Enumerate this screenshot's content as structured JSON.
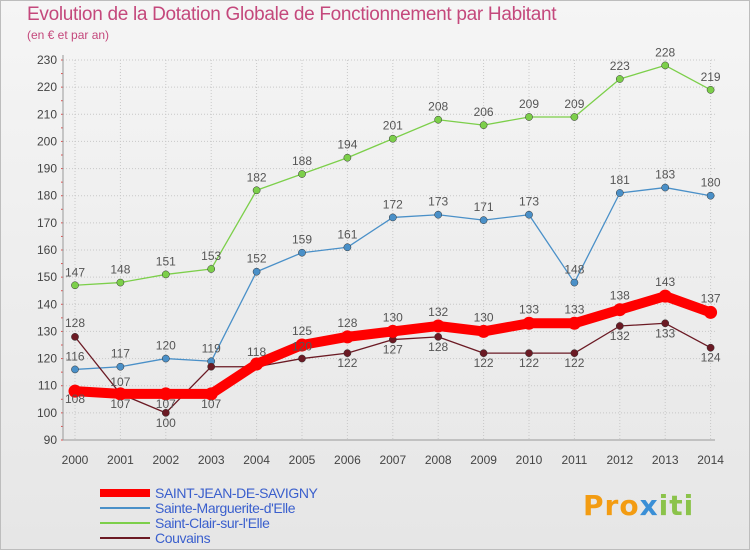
{
  "header": {
    "title": "Evolution de la Dotation Globale de Fonctionnement par Habitant",
    "subtitle": "(en € et par an)"
  },
  "logo": {
    "part1": "Pro",
    "part2": "x",
    "part3": "iti"
  },
  "chart_data": {
    "type": "line",
    "title": "Evolution de la Dotation Globale de Fonctionnement par Habitant",
    "subtitle": "(en € et par an)",
    "xlabel": "",
    "ylabel": "",
    "ylim": [
      90,
      230
    ],
    "yticks": [
      90,
      100,
      110,
      120,
      130,
      140,
      150,
      160,
      170,
      180,
      190,
      200,
      210,
      220,
      230
    ],
    "x": [
      "2000",
      "2001",
      "2002",
      "2003",
      "2004",
      "2005",
      "2006",
      "2007",
      "2008",
      "2009",
      "2010",
      "2011",
      "2012",
      "2013",
      "2014"
    ],
    "legend_position": "bottom-left",
    "series": [
      {
        "name": "Saint-Clair-sur-l'Elle",
        "color": "#7ccf4a",
        "values": [
          147,
          148,
          151,
          153,
          182,
          188,
          194,
          201,
          208,
          206,
          209,
          209,
          223,
          228,
          219
        ],
        "labels": [
          "147",
          "148",
          "151",
          "153",
          "182",
          "188",
          "194",
          "201",
          "208",
          "206",
          "209",
          "209",
          "223",
          "228",
          "219"
        ]
      },
      {
        "name": "Sainte-Marguerite-d'Elle",
        "color": "#4a90c8",
        "values": [
          116,
          117,
          120,
          119,
          152,
          159,
          161,
          172,
          173,
          171,
          173,
          148,
          181,
          183,
          180
        ],
        "labels": [
          "116",
          "117",
          "120",
          "119",
          "152",
          "159",
          "161",
          "172",
          "173",
          "171",
          "173",
          "148",
          "181",
          "183",
          "180"
        ]
      },
      {
        "name": "Couvains",
        "color": "#6b1a24",
        "values": [
          128,
          107,
          100,
          117,
          117,
          120,
          122,
          127,
          128,
          122,
          122,
          122,
          132,
          133,
          124
        ],
        "labels": [
          "128",
          "107",
          "100",
          "",
          "",
          "120",
          "122",
          "127",
          "128",
          "122",
          "122",
          "122",
          "132",
          "133",
          "124"
        ]
      },
      {
        "name": "SAINT-JEAN-DE-SAVIGNY",
        "color": "#ff0000",
        "values": [
          108,
          107,
          107,
          107,
          118,
          125,
          128,
          130,
          132,
          130,
          133,
          133,
          138,
          143,
          137
        ],
        "labels": [
          "108",
          "107",
          "107",
          "107",
          "118",
          "125",
          "128",
          "130",
          "132",
          "130",
          "133",
          "133",
          "138",
          "143",
          "137"
        ]
      }
    ]
  },
  "legend": {
    "items": [
      {
        "label": "SAINT-JEAN-DE-SAVIGNY",
        "color": "#ff0000"
      },
      {
        "label": "Sainte-Marguerite-d'Elle",
        "color": "#4a90c8"
      },
      {
        "label": "Saint-Clair-sur-l'Elle",
        "color": "#7ccf4a"
      },
      {
        "label": "Couvains",
        "color": "#6b1a24"
      }
    ]
  }
}
